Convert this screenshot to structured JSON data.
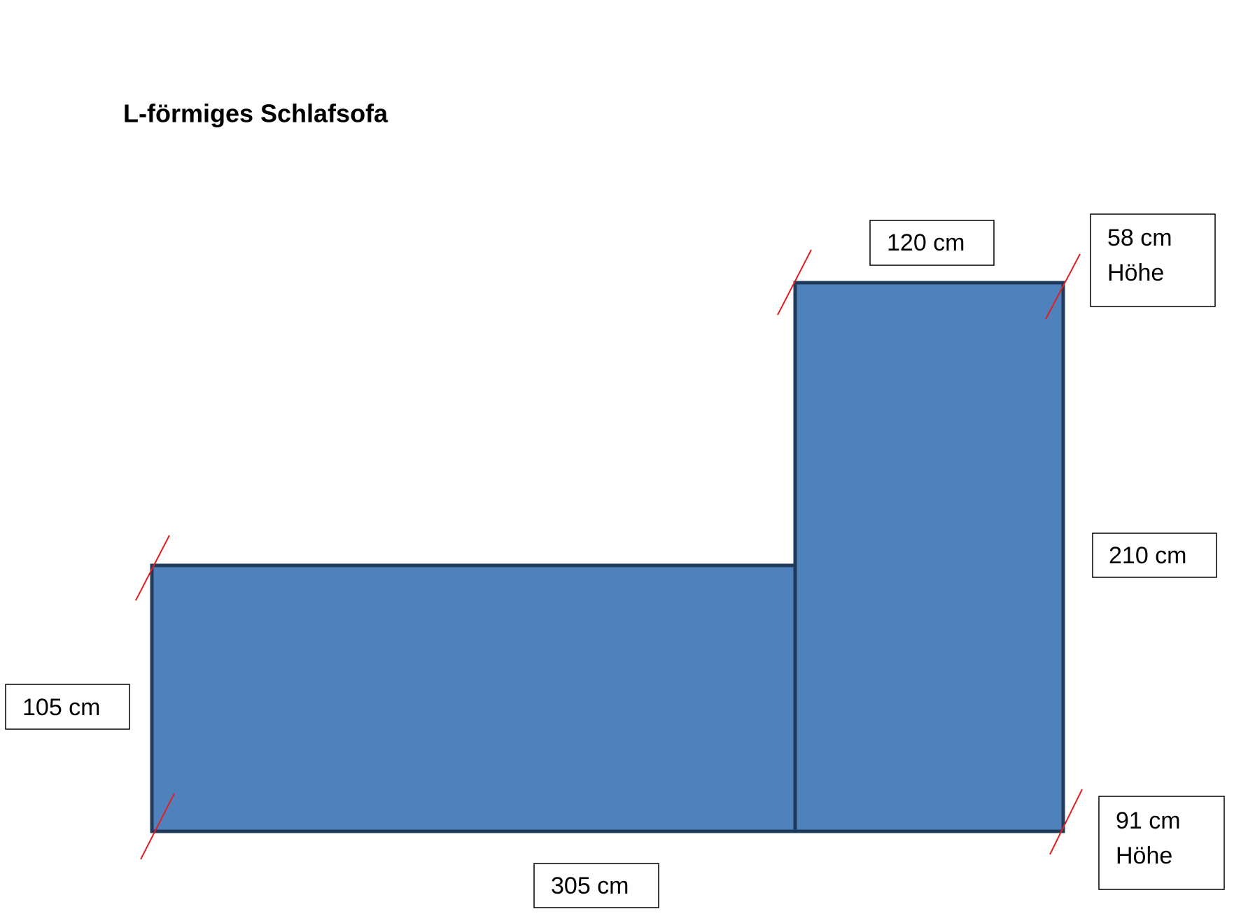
{
  "title": "L-förmiges Schlafsofa",
  "labels": [
    {
      "lines": [
        "120 cm"
      ]
    },
    {
      "lines": [
        "58 cm",
        "Höhe"
      ]
    },
    {
      "lines": [
        "210 cm"
      ]
    },
    {
      "lines": [
        "105 cm"
      ]
    },
    {
      "lines": [
        "305 cm"
      ]
    },
    {
      "lines": [
        "91 cm",
        "Höhe"
      ]
    }
  ]
}
